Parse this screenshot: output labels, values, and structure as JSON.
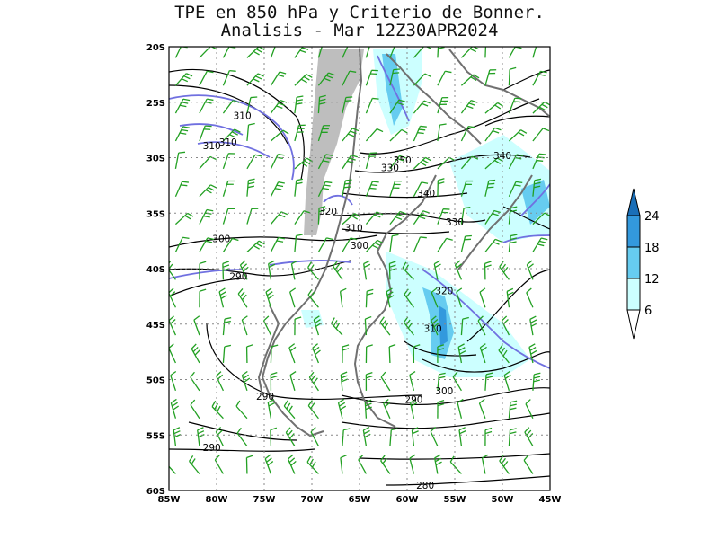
{
  "title_line1": "TPE en 850 hPa y Criterio de Bonner.",
  "title_line2": "Analisis - Mar 12Z30APR2024",
  "map": {
    "lon_labels": [
      "85W",
      "80W",
      "75W",
      "70W",
      "65W",
      "60W",
      "55W",
      "50W",
      "45W"
    ],
    "lat_labels": [
      "20S",
      "25S",
      "30S",
      "35S",
      "40S",
      "45S",
      "50S",
      "55S",
      "60S"
    ],
    "contour_labels": [
      {
        "text": "310",
        "lon": -77.3,
        "lat": -26.2
      },
      {
        "text": "310",
        "lon": -78.8,
        "lat": -28.6
      },
      {
        "text": "310",
        "lon": -80.5,
        "lat": -28.9
      },
      {
        "text": "350",
        "lon": -60.5,
        "lat": -30.2
      },
      {
        "text": "330",
        "lon": -61.8,
        "lat": -30.9
      },
      {
        "text": "340",
        "lon": -50.0,
        "lat": -29.8
      },
      {
        "text": "340",
        "lon": -58.0,
        "lat": -33.2
      },
      {
        "text": "320",
        "lon": -68.3,
        "lat": -34.8
      },
      {
        "text": "330",
        "lon": -55.0,
        "lat": -35.8
      },
      {
        "text": "310",
        "lon": -65.6,
        "lat": -36.3
      },
      {
        "text": "300",
        "lon": -65.0,
        "lat": -37.9
      },
      {
        "text": "300",
        "lon": -79.5,
        "lat": -37.3
      },
      {
        "text": "290",
        "lon": -77.7,
        "lat": -40.7
      },
      {
        "text": "320",
        "lon": -56.1,
        "lat": -42.0
      },
      {
        "text": "310",
        "lon": -57.3,
        "lat": -45.4
      },
      {
        "text": "300",
        "lon": -56.1,
        "lat": -51.0
      },
      {
        "text": "290",
        "lon": -59.3,
        "lat": -51.8
      },
      {
        "text": "290",
        "lon": -74.9,
        "lat": -51.5
      },
      {
        "text": "290",
        "lon": -80.5,
        "lat": -56.1
      },
      {
        "text": "280",
        "lon": -58.1,
        "lat": -59.5
      }
    ]
  },
  "colorbar": {
    "levels": [
      "6",
      "12",
      "18",
      "24"
    ],
    "colors": [
      "#ffffff",
      "#ccffff",
      "#66ccf0",
      "#3399dd",
      "#1a6fb8"
    ]
  },
  "colors": {
    "wind_barbs": "#22a022",
    "tpe_contours": "#000000",
    "bonner_contours": "#7070e0",
    "coastline": "#707070",
    "terrain_mask": "#bebebe"
  }
}
